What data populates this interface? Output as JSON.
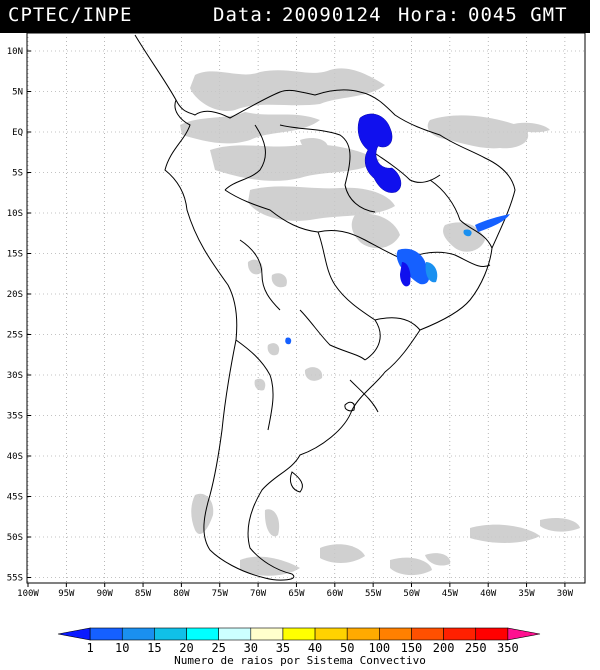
{
  "header": {
    "agency": "CPTEC/INPE",
    "date_label": "Data:",
    "date_value": "20090124",
    "time_label": "Hora:",
    "time_value": "0045 GMT"
  },
  "map": {
    "lat_labels": [
      "10N",
      "5N",
      "EQ",
      "5S",
      "10S",
      "15S",
      "20S",
      "25S",
      "30S",
      "35S",
      "40S",
      "45S",
      "50S",
      "55S"
    ],
    "lon_labels": [
      "100W",
      "95W",
      "90W",
      "85W",
      "80W",
      "75W",
      "70W",
      "65W",
      "60W",
      "55W",
      "50W",
      "45W",
      "40W",
      "35W",
      "30W"
    ]
  },
  "legend": {
    "values": [
      "1",
      "10",
      "15",
      "20",
      "25",
      "30",
      "35",
      "40",
      "50",
      "100",
      "150",
      "200",
      "250",
      "350"
    ],
    "colors": [
      "#0a1aff",
      "#1560ff",
      "#1a90f0",
      "#10c0e8",
      "#00ffff",
      "#ccffff",
      "#ffffcc",
      "#ffff00",
      "#ffd200",
      "#ffaa00",
      "#ff8000",
      "#ff5000",
      "#ff2000",
      "#ff0000",
      "#ff1090"
    ],
    "title": "Numero de raios por Sistema Convectivo"
  }
}
